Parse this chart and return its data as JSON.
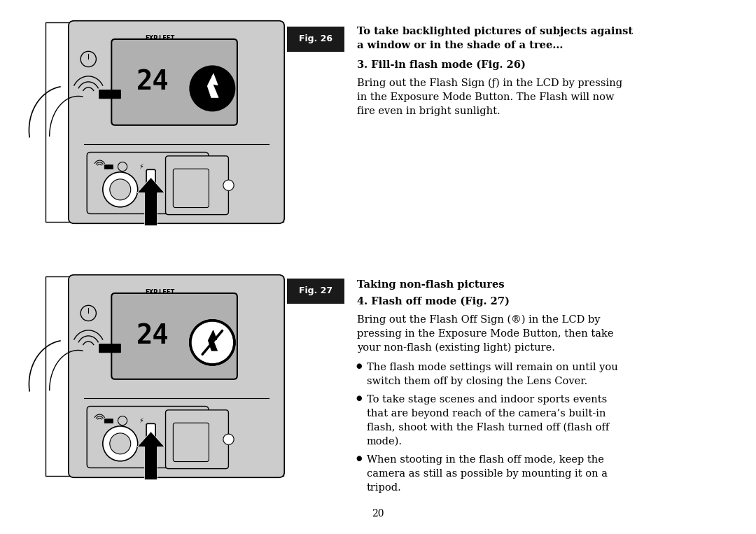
{
  "bg_color": "#ffffff",
  "page_number": "20",
  "fig26_label": "Fig. 26",
  "fig27_label": "Fig. 27",
  "fig_label_bg": "#1a1a1a",
  "section1_title_line1": "To take backlighted pictures of subjects against",
  "section1_title_line2": "a window or in the shade of a tree...",
  "section1_sub": "3. Fill-in flash mode (Fig. 26)",
  "section1_body": [
    "Bring out the Flash Sign (ƒ) in the LCD by pressing",
    "in the Exposure Mode Button. The Flash will now",
    "fire even in bright sunlight."
  ],
  "section2_header": "Taking non-flash pictures",
  "section2_sub": "4. Flash off mode (Fig. 27)",
  "section2_intro": [
    "Bring out the Flash Off Sign (®) in the LCD by",
    "pressing in the Exposure Mode Button, then take",
    "your non-flash (existing light) picture."
  ],
  "bullets": [
    [
      "The flash mode settings will remain on until you",
      "switch them off by closing the Lens Cover."
    ],
    [
      "To take stage scenes and indoor sports events",
      "that are beyond reach of the camera’s built-in",
      "flash, shoot with the Flash turned off (flash off",
      "mode)."
    ],
    [
      "When stooting in the flash off mode, keep the",
      "camera as still as possible by mounting it on a",
      "tripod."
    ]
  ],
  "camera_gray": "#cccccc",
  "camera_dark_gray": "#aaaaaa",
  "camera_border": "#000000",
  "lcd_gray": "#b0b0b0",
  "white": "#ffffff",
  "black": "#000000"
}
